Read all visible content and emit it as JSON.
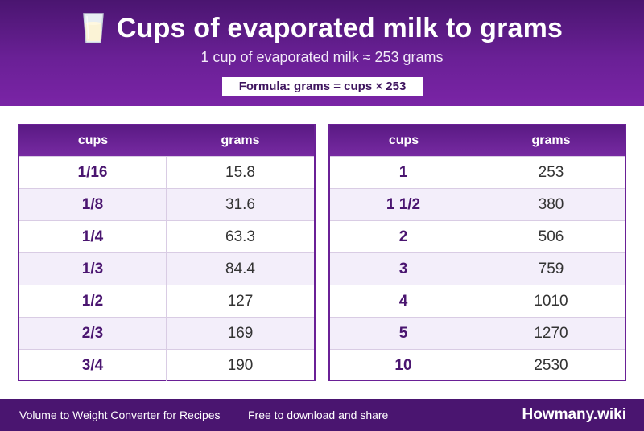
{
  "header": {
    "icon": "milk-glass-icon",
    "title": "Cups of evaporated milk to grams",
    "subtitle": "1 cup of evaporated milk ≈ 253 grams",
    "formula": "Formula: grams = cups × 253"
  },
  "tables": [
    {
      "col1_header": "cups",
      "col2_header": "grams",
      "rows": [
        {
          "cups": "1/16",
          "grams": "15.8"
        },
        {
          "cups": "1/8",
          "grams": "31.6"
        },
        {
          "cups": "1/4",
          "grams": "63.3"
        },
        {
          "cups": "1/3",
          "grams": "84.4"
        },
        {
          "cups": "1/2",
          "grams": "127"
        },
        {
          "cups": "2/3",
          "grams": "169"
        },
        {
          "cups": "3/4",
          "grams": "190"
        }
      ]
    },
    {
      "col1_header": "cups",
      "col2_header": "grams",
      "rows": [
        {
          "cups": "1",
          "grams": "253"
        },
        {
          "cups": "1 1/2",
          "grams": "380"
        },
        {
          "cups": "2",
          "grams": "506"
        },
        {
          "cups": "3",
          "grams": "759"
        },
        {
          "cups": "4",
          "grams": "1010"
        },
        {
          "cups": "5",
          "grams": "1270"
        },
        {
          "cups": "10",
          "grams": "2530"
        }
      ]
    }
  ],
  "footer": {
    "left_text": "Volume to Weight Converter for Recipes",
    "middle_text": "Free to download and share",
    "brand": "Howmany.wiki"
  },
  "colors": {
    "brand_purple": "#6a2096",
    "dark_purple": "#4a1570",
    "row_alt": "#f3eefa"
  }
}
